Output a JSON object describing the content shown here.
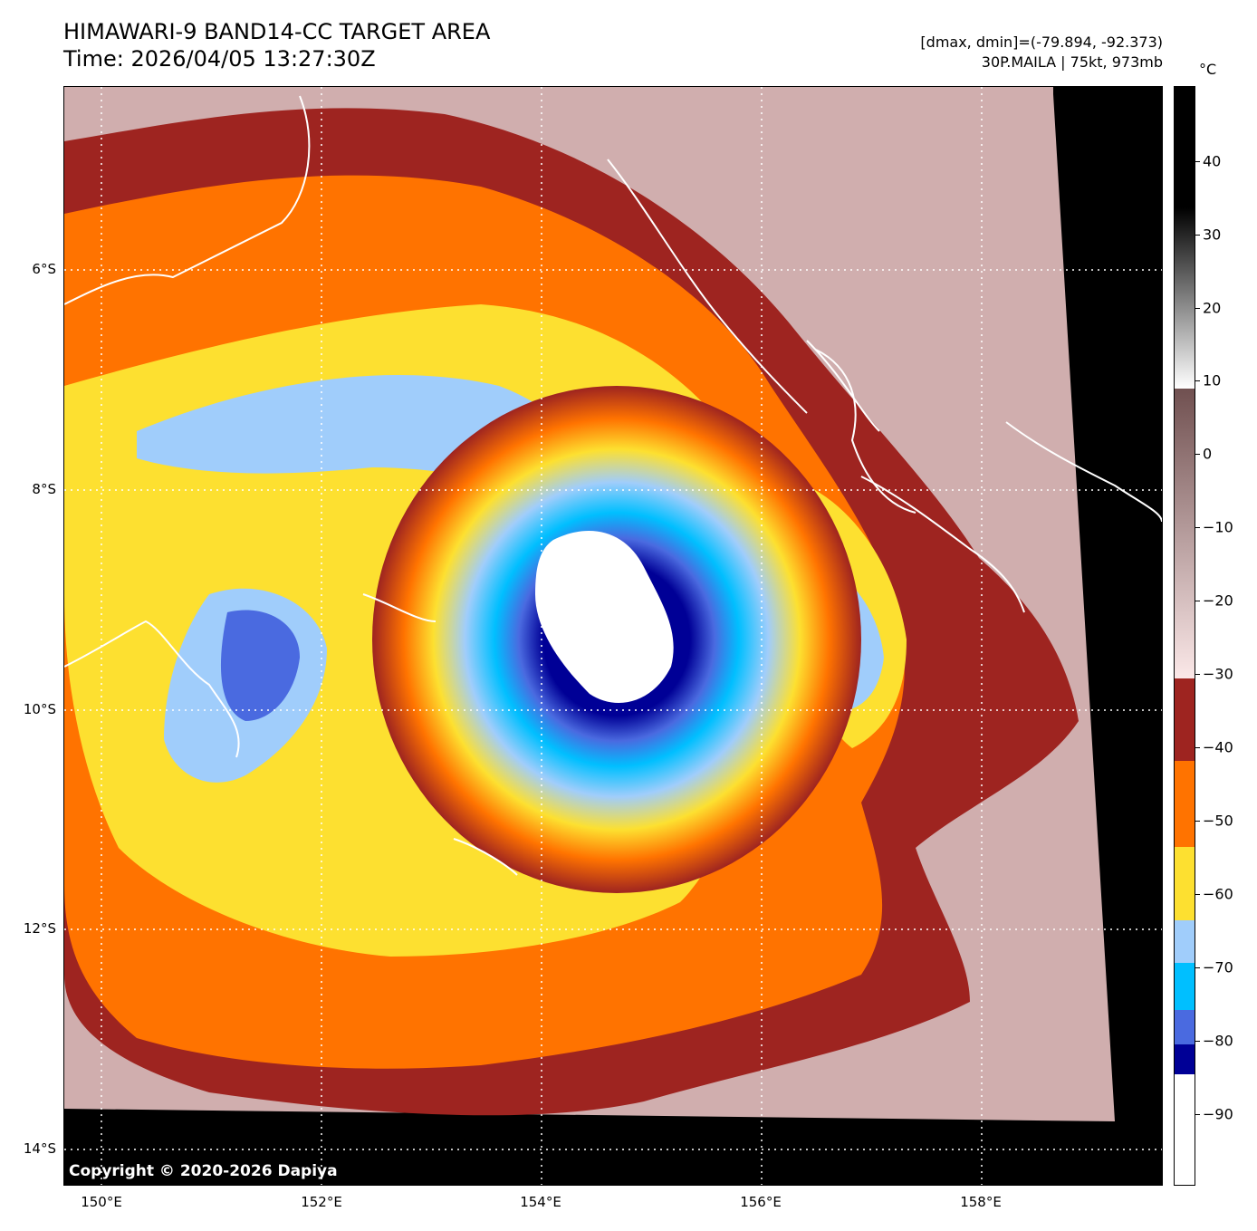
{
  "header": {
    "title_line1": "HIMAWARI-9 BAND14-CC TARGET AREA",
    "title_line2": "Time: 2026/04/05 13:27:30Z",
    "range_info": "[dmax, dmin]=(-79.894, -92.373)",
    "storm_info": "30P.MAILA | 75kt, 973mb"
  },
  "map": {
    "copyright": "Copyright © 2020-2026 Dapiya",
    "lat_labels": [
      "6°S",
      "8°S",
      "10°S",
      "12°S",
      "14°S"
    ],
    "lon_labels": [
      "150°E",
      "152°E",
      "154°E",
      "156°E",
      "158°E"
    ],
    "storm_center": {
      "lat": "9.3°S",
      "lon": "154.7°E"
    }
  },
  "colorbar": {
    "unit": "°C",
    "ticks": [
      "40",
      "30",
      "20",
      "10",
      "0",
      "−10",
      "−20",
      "−30",
      "−40",
      "−50",
      "−60",
      "−70",
      "−80",
      "−90"
    ],
    "colors": {
      "warm_black": "#000000",
      "gray_white": "#ffffff",
      "brown": "#7d5a5a",
      "pink": "#f5dada",
      "dark_red": "#9e2420",
      "orange": "#ff7300",
      "yellow": "#fde030",
      "light_blue": "#a0cdfb",
      "cyan": "#00bfff",
      "royal_blue": "#4a6ae0",
      "navy": "#000096",
      "cold_white": "#ffffff"
    }
  }
}
